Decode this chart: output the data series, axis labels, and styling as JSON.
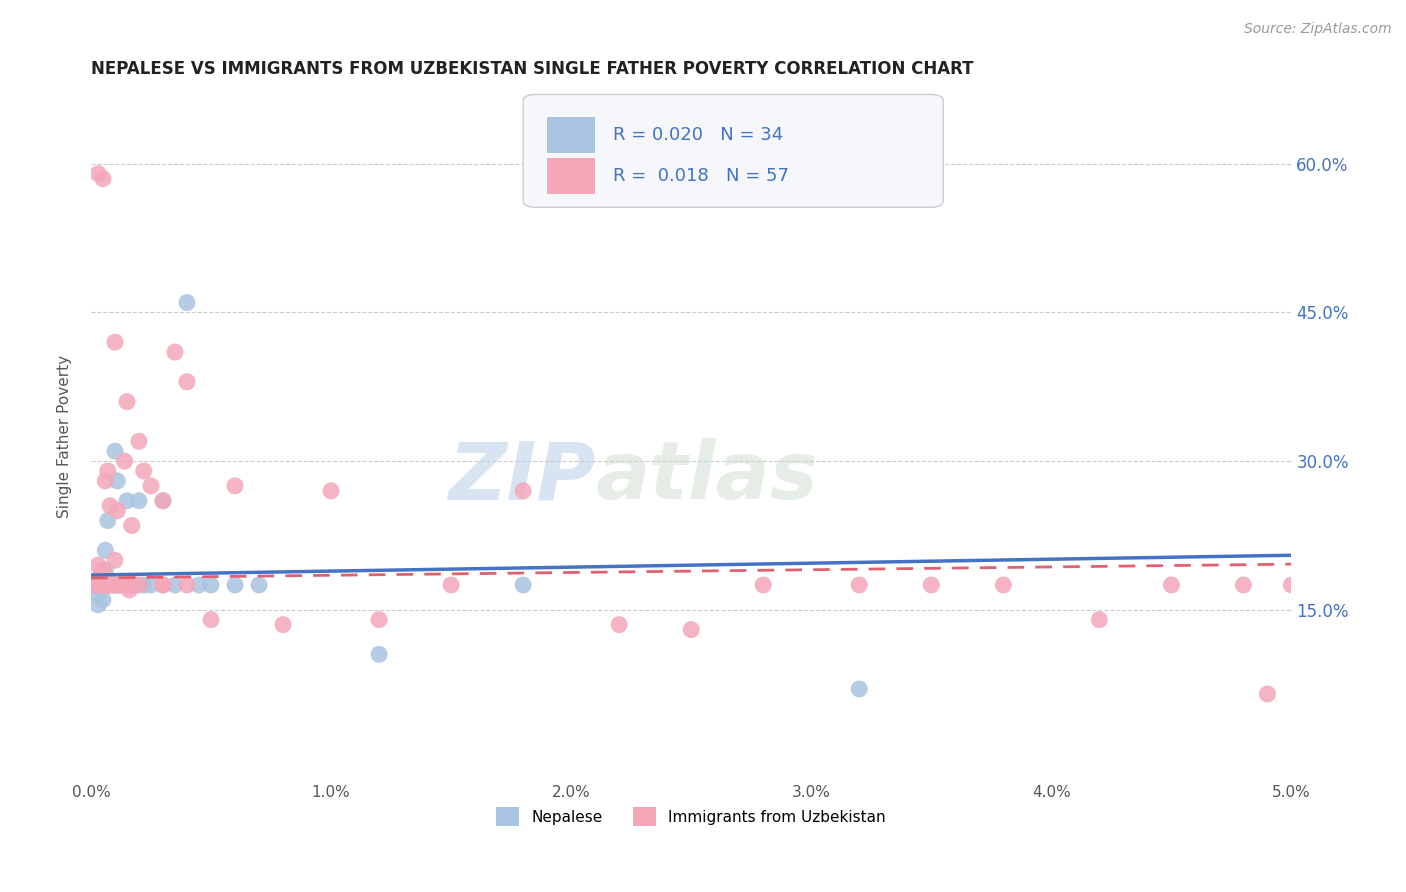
{
  "title": "NEPALESE VS IMMIGRANTS FROM UZBEKISTAN SINGLE FATHER POVERTY CORRELATION CHART",
  "source": "Source: ZipAtlas.com",
  "ylabel": "Single Father Poverty",
  "yticks": [
    "15.0%",
    "30.0%",
    "45.0%",
    "60.0%"
  ],
  "ytick_vals": [
    0.15,
    0.3,
    0.45,
    0.6
  ],
  "xlim": [
    0.0,
    0.05
  ],
  "ylim": [
    -0.02,
    0.67
  ],
  "legend_label1": "Nepalese",
  "legend_label2": "Immigrants from Uzbekistan",
  "r1": "0.020",
  "n1": "34",
  "r2": "0.018",
  "n2": "57",
  "color1": "#a8c4e0",
  "color2": "#f4a7b9",
  "trend_color1": "#4472c4",
  "trend_color2": "#e06070",
  "watermark_zip": "ZIP",
  "watermark_atlas": "atlas",
  "nepalese_x": [
    0.0002,
    0.0003,
    0.0003,
    0.0004,
    0.0004,
    0.0005,
    0.0005,
    0.0006,
    0.0006,
    0.0007,
    0.0007,
    0.0008,
    0.0009,
    0.001,
    0.001,
    0.0011,
    0.0012,
    0.0013,
    0.0015,
    0.0016,
    0.0018,
    0.002,
    0.0022,
    0.0025,
    0.003,
    0.0035,
    0.004,
    0.0045,
    0.005,
    0.006,
    0.007,
    0.012,
    0.018,
    0.032
  ],
  "nepalese_y": [
    0.175,
    0.165,
    0.155,
    0.175,
    0.185,
    0.175,
    0.16,
    0.21,
    0.19,
    0.24,
    0.175,
    0.175,
    0.175,
    0.31,
    0.175,
    0.28,
    0.175,
    0.175,
    0.26,
    0.175,
    0.175,
    0.26,
    0.175,
    0.175,
    0.26,
    0.175,
    0.46,
    0.175,
    0.175,
    0.175,
    0.175,
    0.105,
    0.175,
    0.07
  ],
  "uzbek_x": [
    0.0002,
    0.0003,
    0.0003,
    0.0004,
    0.0004,
    0.0005,
    0.0005,
    0.0006,
    0.0006,
    0.0007,
    0.0007,
    0.0008,
    0.0008,
    0.0009,
    0.001,
    0.001,
    0.0011,
    0.0011,
    0.0012,
    0.0013,
    0.0014,
    0.0015,
    0.0016,
    0.0017,
    0.0018,
    0.002,
    0.0022,
    0.0025,
    0.003,
    0.003,
    0.0035,
    0.004,
    0.005,
    0.006,
    0.008,
    0.01,
    0.012,
    0.015,
    0.018,
    0.022,
    0.025,
    0.028,
    0.032,
    0.035,
    0.038,
    0.042,
    0.045,
    0.048,
    0.049,
    0.05,
    0.0003,
    0.0005,
    0.001,
    0.0015,
    0.002,
    0.003,
    0.004
  ],
  "uzbek_y": [
    0.175,
    0.195,
    0.175,
    0.175,
    0.185,
    0.175,
    0.19,
    0.28,
    0.175,
    0.175,
    0.29,
    0.175,
    0.255,
    0.175,
    0.175,
    0.2,
    0.25,
    0.175,
    0.175,
    0.175,
    0.3,
    0.175,
    0.17,
    0.235,
    0.175,
    0.175,
    0.29,
    0.275,
    0.26,
    0.175,
    0.41,
    0.38,
    0.14,
    0.275,
    0.135,
    0.27,
    0.14,
    0.175,
    0.27,
    0.135,
    0.13,
    0.175,
    0.175,
    0.175,
    0.175,
    0.14,
    0.175,
    0.175,
    0.065,
    0.175,
    0.59,
    0.585,
    0.42,
    0.36,
    0.32,
    0.175,
    0.175
  ],
  "trend1_x": [
    0.0,
    0.05
  ],
  "trend1_y": [
    0.185,
    0.205
  ],
  "trend2_x": [
    0.0,
    0.05
  ],
  "trend2_y": [
    0.182,
    0.196
  ]
}
